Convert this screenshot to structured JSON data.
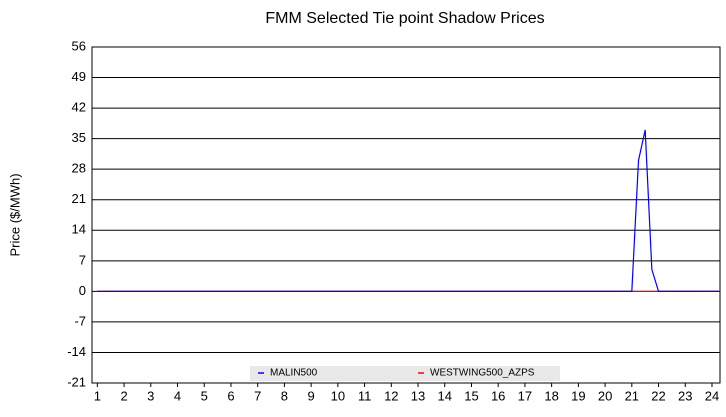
{
  "chart_data": {
    "type": "line",
    "title": "FMM Selected Tie point Shadow Prices",
    "y_label": "Price ($/MWh)",
    "x": [
      1,
      21,
      21.25,
      21.5,
      21.75,
      22,
      24.25
    ],
    "series": [
      {
        "name": "MALIN500",
        "color": "#0000ff",
        "values": [
          0,
          0,
          30,
          37,
          5,
          0,
          0
        ]
      },
      {
        "name": "WESTWING500_AZPS",
        "color": "#ff0000",
        "values": [
          0,
          0,
          0,
          0,
          0,
          0,
          0
        ]
      }
    ],
    "xlim": [
      0.8,
      24.3
    ],
    "xticks": [
      1,
      2,
      3,
      4,
      5,
      6,
      7,
      8,
      9,
      10,
      11,
      12,
      13,
      14,
      15,
      16,
      17,
      18,
      19,
      20,
      21,
      22,
      23,
      24
    ],
    "ylim": [
      -21,
      56
    ],
    "yticks": [
      -21,
      -14,
      -7,
      0,
      7,
      14,
      21,
      28,
      35,
      42,
      49,
      56
    ],
    "grid": true
  }
}
